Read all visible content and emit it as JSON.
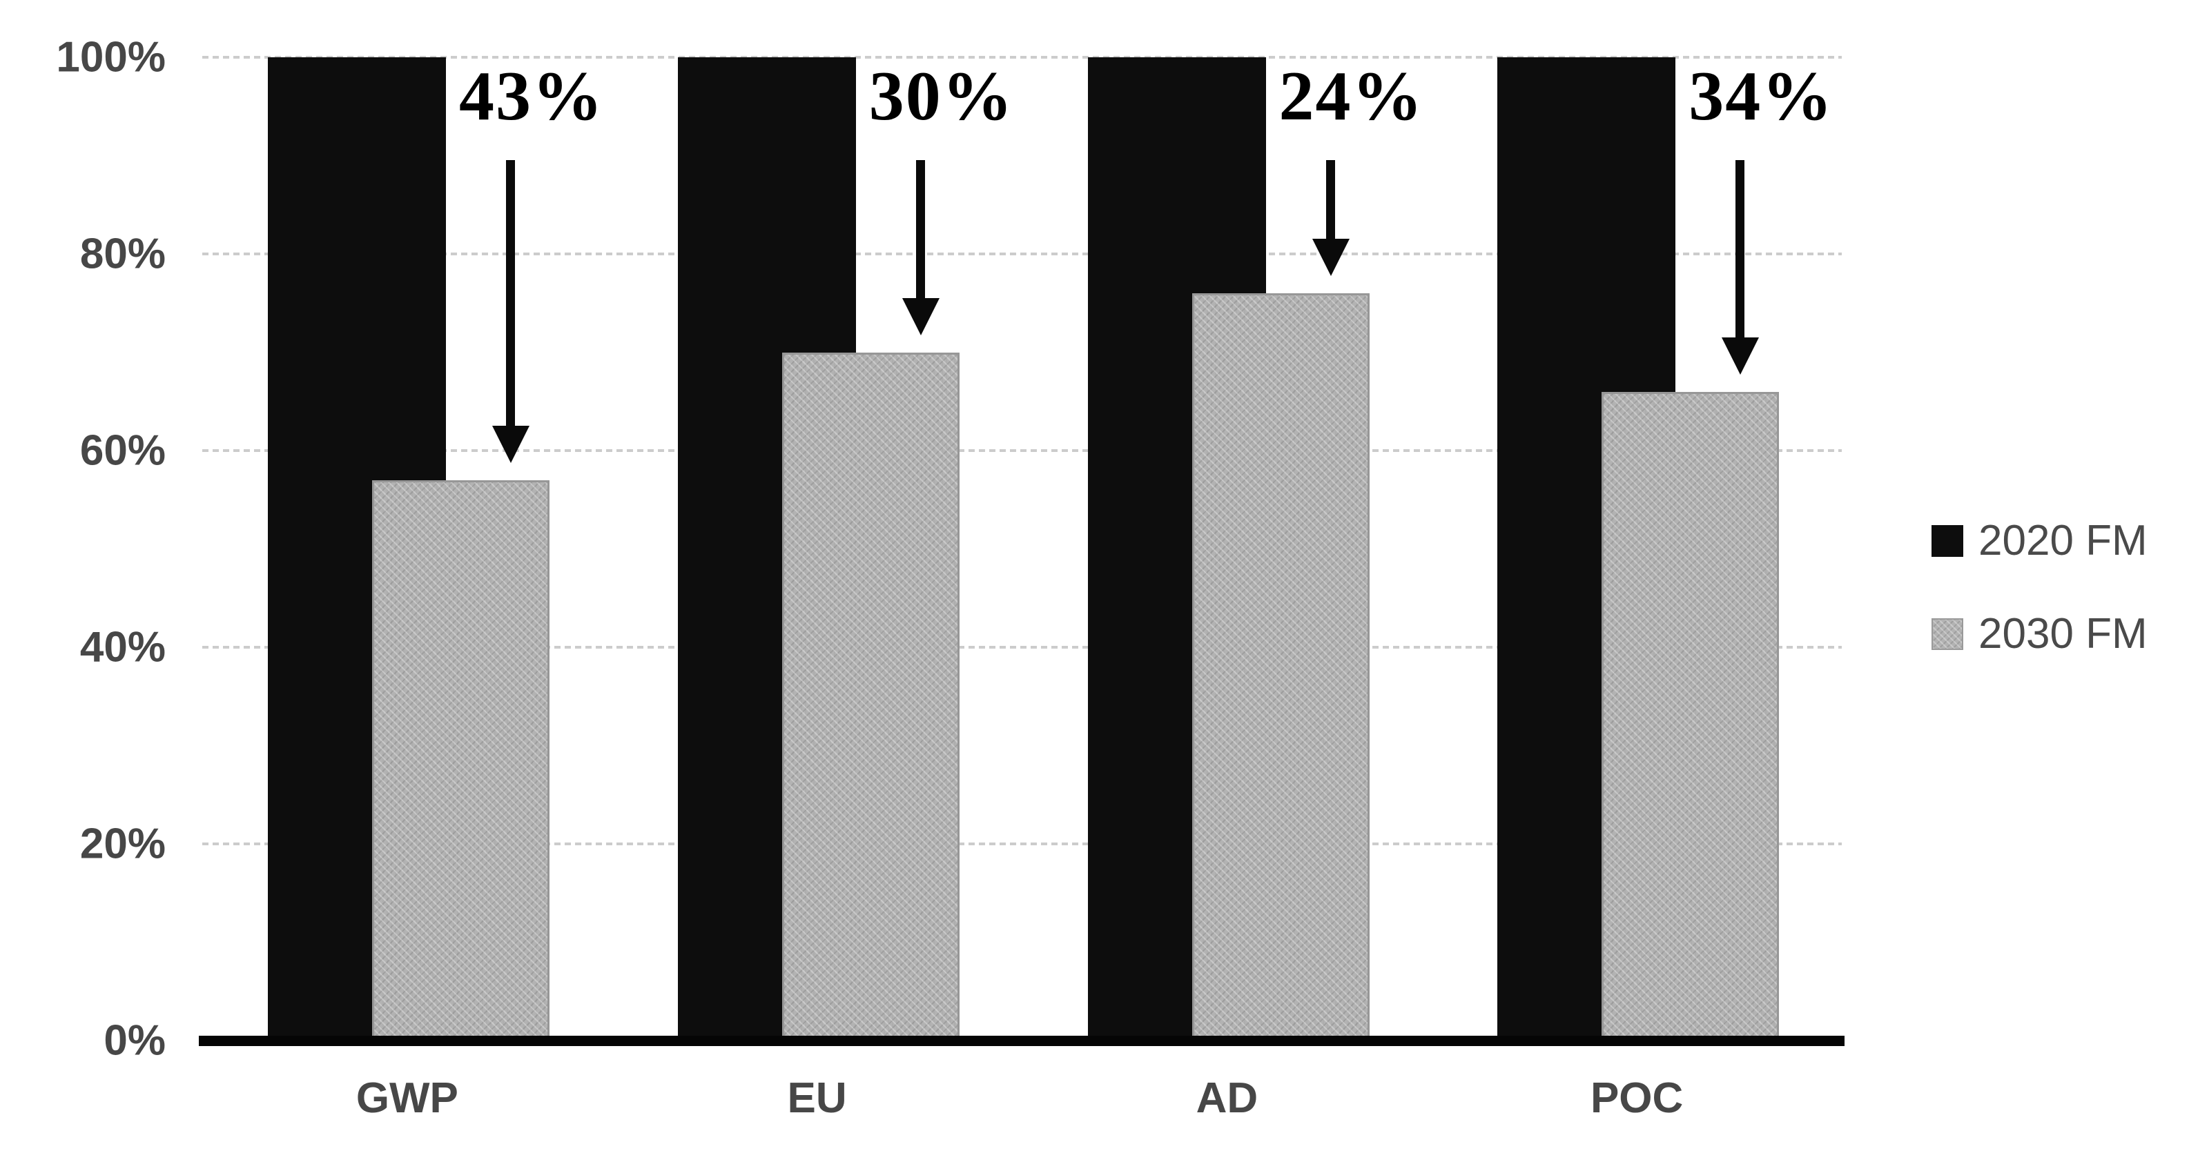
{
  "chart_data": {
    "type": "bar",
    "title": "",
    "categories": [
      "GWP",
      "EU",
      "AD",
      "POC"
    ],
    "series": [
      {
        "name": "2020 FM",
        "color": "#0d0d0d",
        "pattern": "solid",
        "values": [
          100,
          100,
          100,
          100
        ]
      },
      {
        "name": "2030 FM",
        "color": "#b3b3b3",
        "pattern": "crosshatch",
        "values": [
          57,
          70,
          76,
          66
        ]
      }
    ],
    "annotations": [
      {
        "category": "GWP",
        "label": "43%",
        "arrow": "down"
      },
      {
        "category": "EU",
        "label": "30%",
        "arrow": "down"
      },
      {
        "category": "AD",
        "label": "24%",
        "arrow": "down"
      },
      {
        "category": "POC",
        "label": "34%",
        "arrow": "down"
      }
    ],
    "y_axis": {
      "min": 0,
      "max": 100,
      "tick_values": [
        0,
        20,
        40,
        60,
        80,
        100
      ],
      "tick_labels": [
        "0%",
        "20%",
        "40%",
        "60%",
        "80%",
        "100%"
      ],
      "grid": true,
      "grid_style": "dotted"
    },
    "x_axis": {
      "labels": [
        "GWP",
        "EU",
        "AD",
        "POC"
      ]
    },
    "legend": {
      "position": "right",
      "entries": [
        "2020 FM",
        "2030 FM"
      ]
    },
    "colors": {
      "background": "#ffffff",
      "bar_2020_fm": "#0d0d0d",
      "bar_2030_fm": "#b3b3b3",
      "gridline": "#cccccc",
      "axis_line": "#050505",
      "tick_label_text": "#474747",
      "legend_text": "#4a4a4a",
      "annotation_text": "#000000"
    }
  }
}
